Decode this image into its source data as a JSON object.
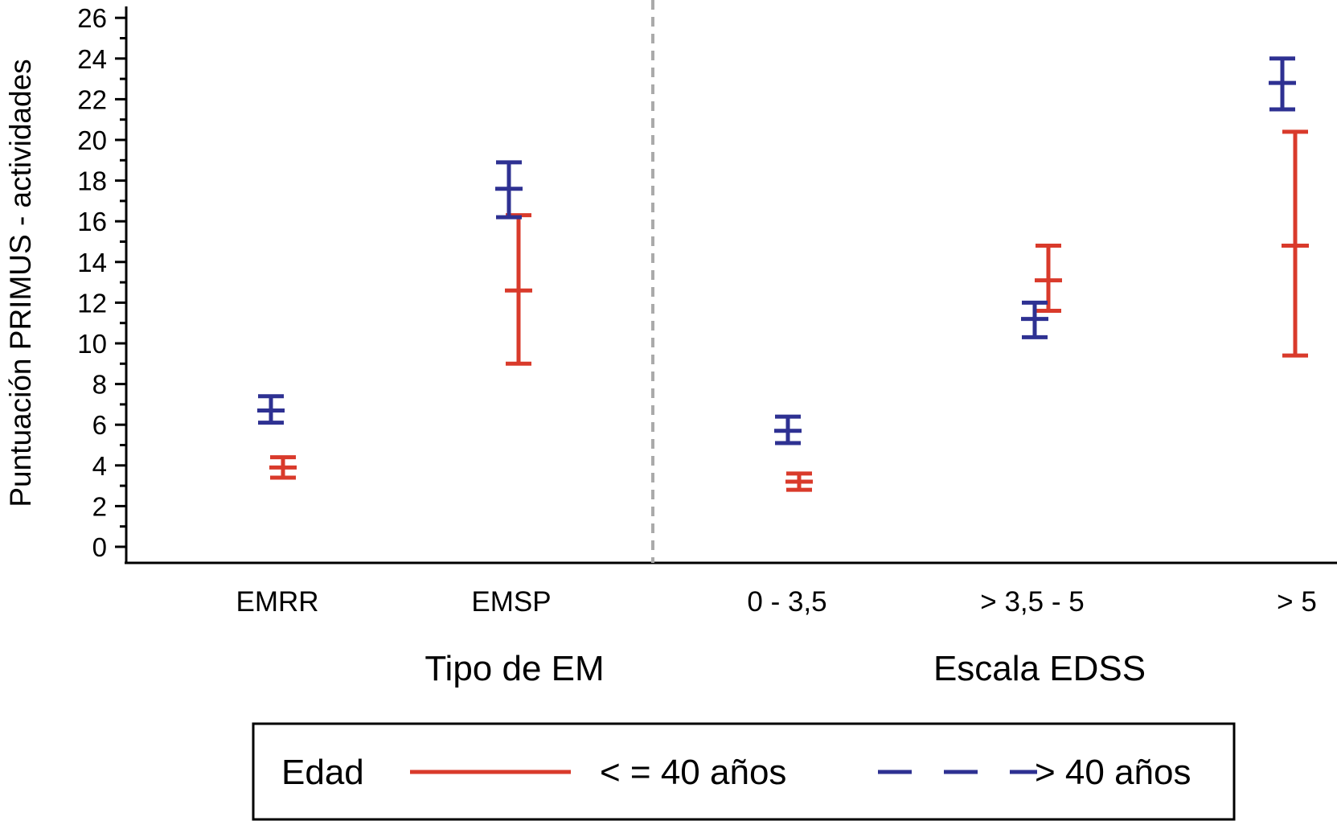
{
  "chart_data": {
    "type": "errorbar",
    "ylabel": "Puntuación PRIMUS - actividades",
    "ylim": [
      0,
      26
    ],
    "yticks": [
      0,
      2,
      4,
      6,
      8,
      10,
      12,
      14,
      16,
      18,
      20,
      22,
      24,
      26
    ],
    "grid": false,
    "groups": [
      {
        "label": "Tipo de EM",
        "categories": [
          "EMRR",
          "EMSP"
        ]
      },
      {
        "label": "Escala EDSS",
        "categories": [
          "0 - 3,5",
          "> 3,5 - 5",
          "> 5"
        ]
      }
    ],
    "categories": [
      "EMRR",
      "EMSP",
      "0 - 3,5",
      "> 3,5 - 5",
      "> 5"
    ],
    "series": [
      {
        "name": "< = 40 años",
        "color": "#d93a2b",
        "line_style": "solid",
        "mean": [
          3.9,
          12.6,
          3.2,
          13.1,
          14.8
        ],
        "lower": [
          3.4,
          9.0,
          2.8,
          11.6,
          9.4
        ],
        "upper": [
          4.4,
          16.3,
          3.6,
          14.8,
          20.4
        ]
      },
      {
        "name": "> 40 años",
        "color": "#2e3192",
        "line_style": "dashed",
        "mean": [
          6.7,
          17.6,
          5.7,
          11.2,
          22.8
        ],
        "lower": [
          6.1,
          16.2,
          5.1,
          10.3,
          21.5
        ],
        "upper": [
          7.4,
          18.9,
          6.4,
          12.0,
          24.0
        ]
      }
    ],
    "legend": {
      "title": "Edad",
      "position": "bottom"
    }
  }
}
